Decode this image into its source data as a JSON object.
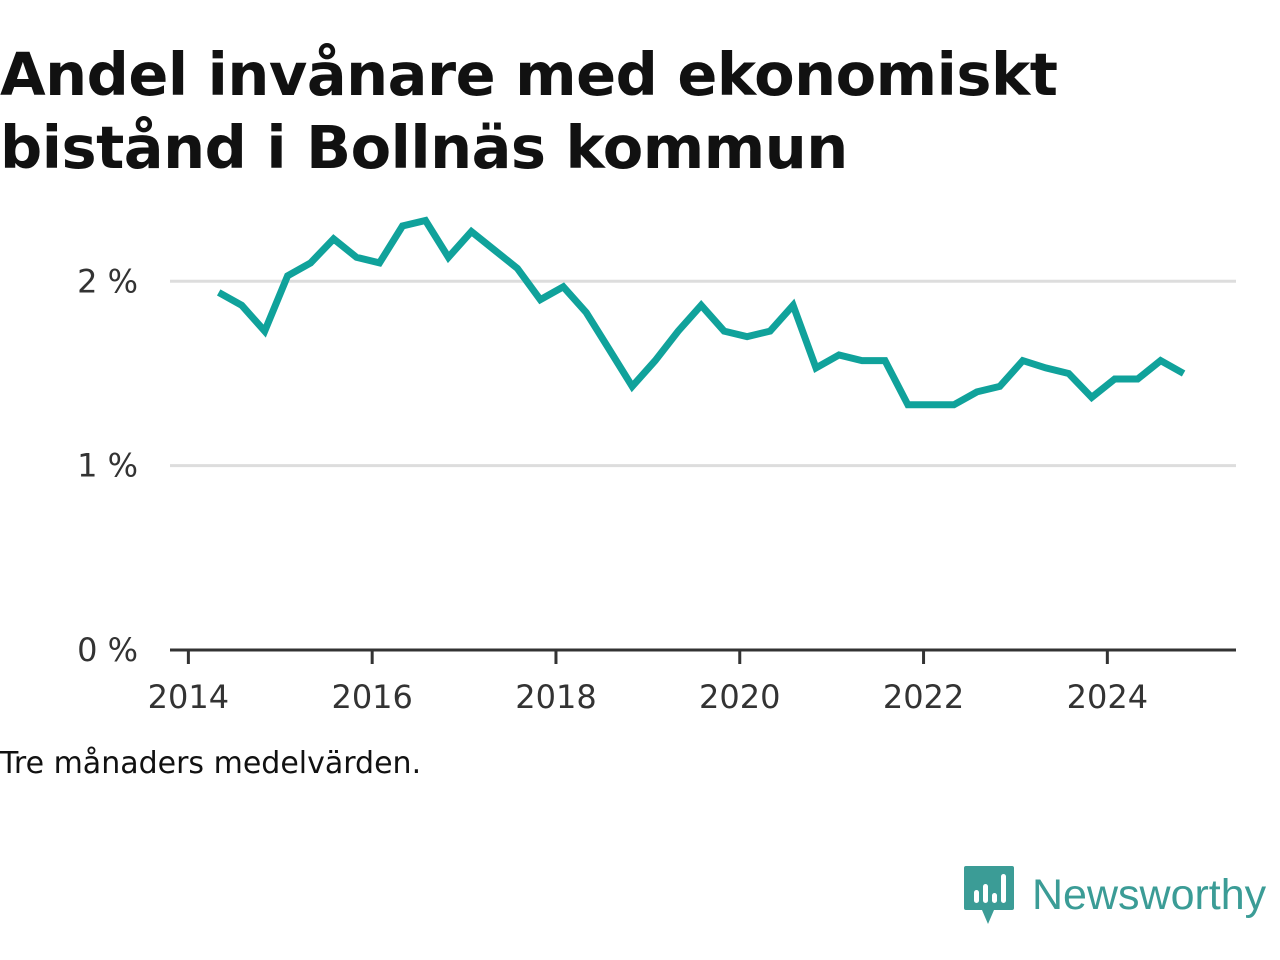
{
  "title": "Andel invånare med ekonomiskt bistånd i Bollnäs kommun",
  "caption": "Tre månaders medelvärden.",
  "brand": {
    "name": "Newsworthy",
    "icon": "newsworthy-bar-chart-logo-icon",
    "color": "#3b9c96"
  },
  "colors": {
    "line": "#10a29b",
    "grid": "#dddddd",
    "axis": "#333333",
    "text": "#333333"
  },
  "chart_data": {
    "type": "line",
    "title": "Andel invånare med ekonomiskt bistånd i Bollnäs kommun",
    "xlabel": "",
    "ylabel": "",
    "xlim": [
      2013.8,
      2025.4
    ],
    "ylim": [
      0,
      2.3
    ],
    "grid": true,
    "legend": "none",
    "x_ticks": [
      2014,
      2016,
      2018,
      2020,
      2022,
      2024
    ],
    "x_tick_labels": [
      "2014",
      "2016",
      "2018",
      "2020",
      "2022",
      "2024"
    ],
    "y_ticks": [
      0,
      1,
      2
    ],
    "y_tick_labels": [
      "0 %",
      "1 %",
      "2 %"
    ],
    "series": [
      {
        "x": [
          2014.33,
          2014.58,
          2014.83,
          2015.08,
          2015.33,
          2015.58,
          2015.83,
          2016.08,
          2016.33,
          2016.58,
          2016.83,
          2017.08,
          2017.33,
          2017.58,
          2017.83,
          2018.08,
          2018.33,
          2018.58,
          2018.83,
          2019.08,
          2019.33,
          2019.58,
          2019.83,
          2020.08,
          2020.33,
          2020.58,
          2020.83,
          2021.08,
          2021.33,
          2021.58,
          2021.83,
          2022.08,
          2022.33,
          2022.58,
          2022.83,
          2023.08,
          2023.33,
          2023.58,
          2023.83,
          2024.08,
          2024.33,
          2024.58,
          2024.83
        ],
        "values": [
          1.94,
          1.87,
          1.73,
          2.03,
          2.1,
          2.23,
          2.13,
          2.1,
          2.3,
          2.33,
          2.13,
          2.27,
          2.17,
          2.07,
          1.9,
          1.97,
          1.83,
          1.63,
          1.43,
          1.57,
          1.73,
          1.87,
          1.73,
          1.7,
          1.73,
          1.87,
          1.53,
          1.6,
          1.57,
          1.57,
          1.33,
          1.33,
          1.33,
          1.4,
          1.43,
          1.57,
          1.53,
          1.5,
          1.37,
          1.47,
          1.47,
          1.57,
          1.5
        ]
      }
    ]
  }
}
